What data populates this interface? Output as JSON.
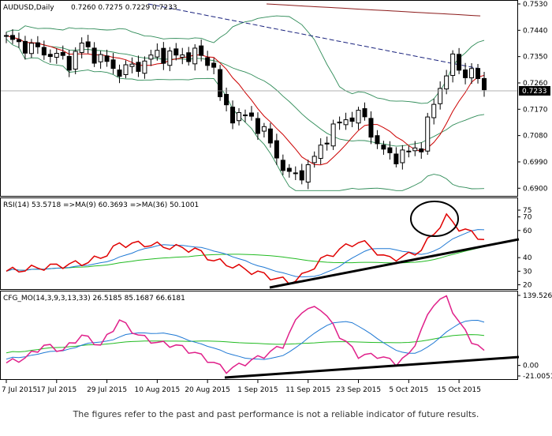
{
  "chart_data": [
    {
      "type": "candlestick",
      "title": "AUDUSD,Daily",
      "ohlc_readout": [
        "0.7260",
        "0.7275",
        "0.7229",
        "0.7233"
      ],
      "last_price": "0.7233",
      "ylim": [
        0.689,
        0.753
      ],
      "y_ticks": [
        "0.7530",
        "0.7440",
        "0.7350",
        "0.7260",
        "0.7170",
        "0.7080",
        "0.6990",
        "0.6900"
      ],
      "indicators": [
        "Bollinger Bands",
        "moving average (red)",
        "moving average (dashed navy)",
        "moving average (dark red)"
      ],
      "colors": {
        "candle_up": "#ffffff",
        "candle_down": "#000000",
        "bands": "#2e8b57",
        "ma_fast": "#cc0000",
        "ma_slow": "#1a237e",
        "ma_long": "#8b1a1a",
        "last_price_box": "#000000"
      }
    },
    {
      "type": "line",
      "title": "RSI(14) 53.5718  =>MA(9) 60.3693  =>MA(36) 50.1001",
      "ylim": [
        18,
        82
      ],
      "y_ticks": [
        "75",
        "70",
        "60",
        "40",
        "30",
        "20"
      ],
      "series_colors": {
        "rsi": "#e00000",
        "ma9": "#1e78d4",
        "ma36": "#22bb22"
      },
      "rsi_last": 53.57,
      "ma9_last": 60.37,
      "ma36_last": 50.1,
      "annotations": [
        "circle around the RSI peak near 70",
        "rising trendline under RSI"
      ]
    },
    {
      "type": "line",
      "title": "CFG_MO(14,3,9,3,13,33) 26.5185 85.1687 66.6181",
      "ylim": [
        -21.0051,
        139.5263
      ],
      "y_ticks": [
        "139.5263",
        "0.00",
        "-21.0051"
      ],
      "series_colors": {
        "main": "#e0208a",
        "signal_1": "#1e78d4",
        "signal_2": "#22bb22"
      },
      "values_last": [
        26.5185,
        85.1687,
        66.6181
      ],
      "annotations": [
        "rising trendline under oscillator"
      ]
    }
  ],
  "x_labels": [
    "7 Jul 2015",
    "17 Jul 2015",
    "29 Jul 2015",
    "10 Aug 2015",
    "20 Aug 2015",
    "1 Sep 2015",
    "11 Sep 2015",
    "23 Sep 2015",
    "5 Oct 2015",
    "15 Oct 2015"
  ],
  "disclaimer": "The figures refer to the past and past performance is not a reliable indicator of future results."
}
